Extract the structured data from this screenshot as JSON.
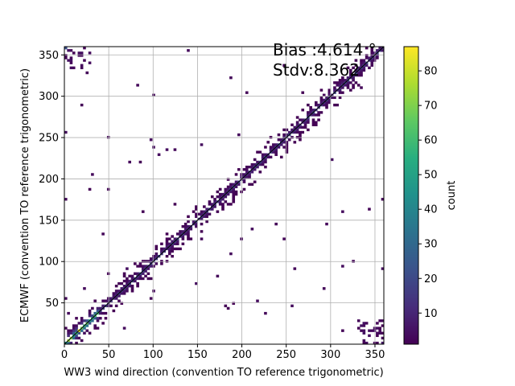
{
  "chart_data": {
    "type": "heatmap",
    "title": "",
    "xlabel": "WW3 wind direction (convention TO reference trigonometric)",
    "ylabel": "ECMWF (convention TO reference trigonometric)",
    "xlim": [
      0,
      360
    ],
    "ylim": [
      0,
      360
    ],
    "x_ticks": [
      0,
      50,
      100,
      150,
      200,
      250,
      300,
      350
    ],
    "y_ticks": [
      50,
      100,
      150,
      200,
      250,
      300,
      350
    ],
    "grid": true,
    "bin_width_deg": 3,
    "colormap": "viridis",
    "colorbar": {
      "label": "count",
      "range": [
        1,
        87
      ],
      "ticks": [
        10,
        20,
        30,
        40,
        50,
        60,
        70,
        80
      ]
    },
    "annotations": {
      "bias": "Bias :4.614 °",
      "stdv": "Stdv:8.362"
    },
    "diagonal_line": {
      "from": [
        0,
        0
      ],
      "to": [
        360,
        360
      ],
      "color": "#000000"
    },
    "description_of_density": {
      "peak_count_near_diagonal_low_angles": 87,
      "typical_count_on_diagonal": 20,
      "band_half_width_deg": 20,
      "outlier_clusters": [
        {
          "x_range": [
            0,
            30
          ],
          "y_range": [
            330,
            360
          ]
        },
        {
          "x_range": [
            330,
            360
          ],
          "y_range": [
            0,
            30
          ]
        }
      ]
    }
  }
}
